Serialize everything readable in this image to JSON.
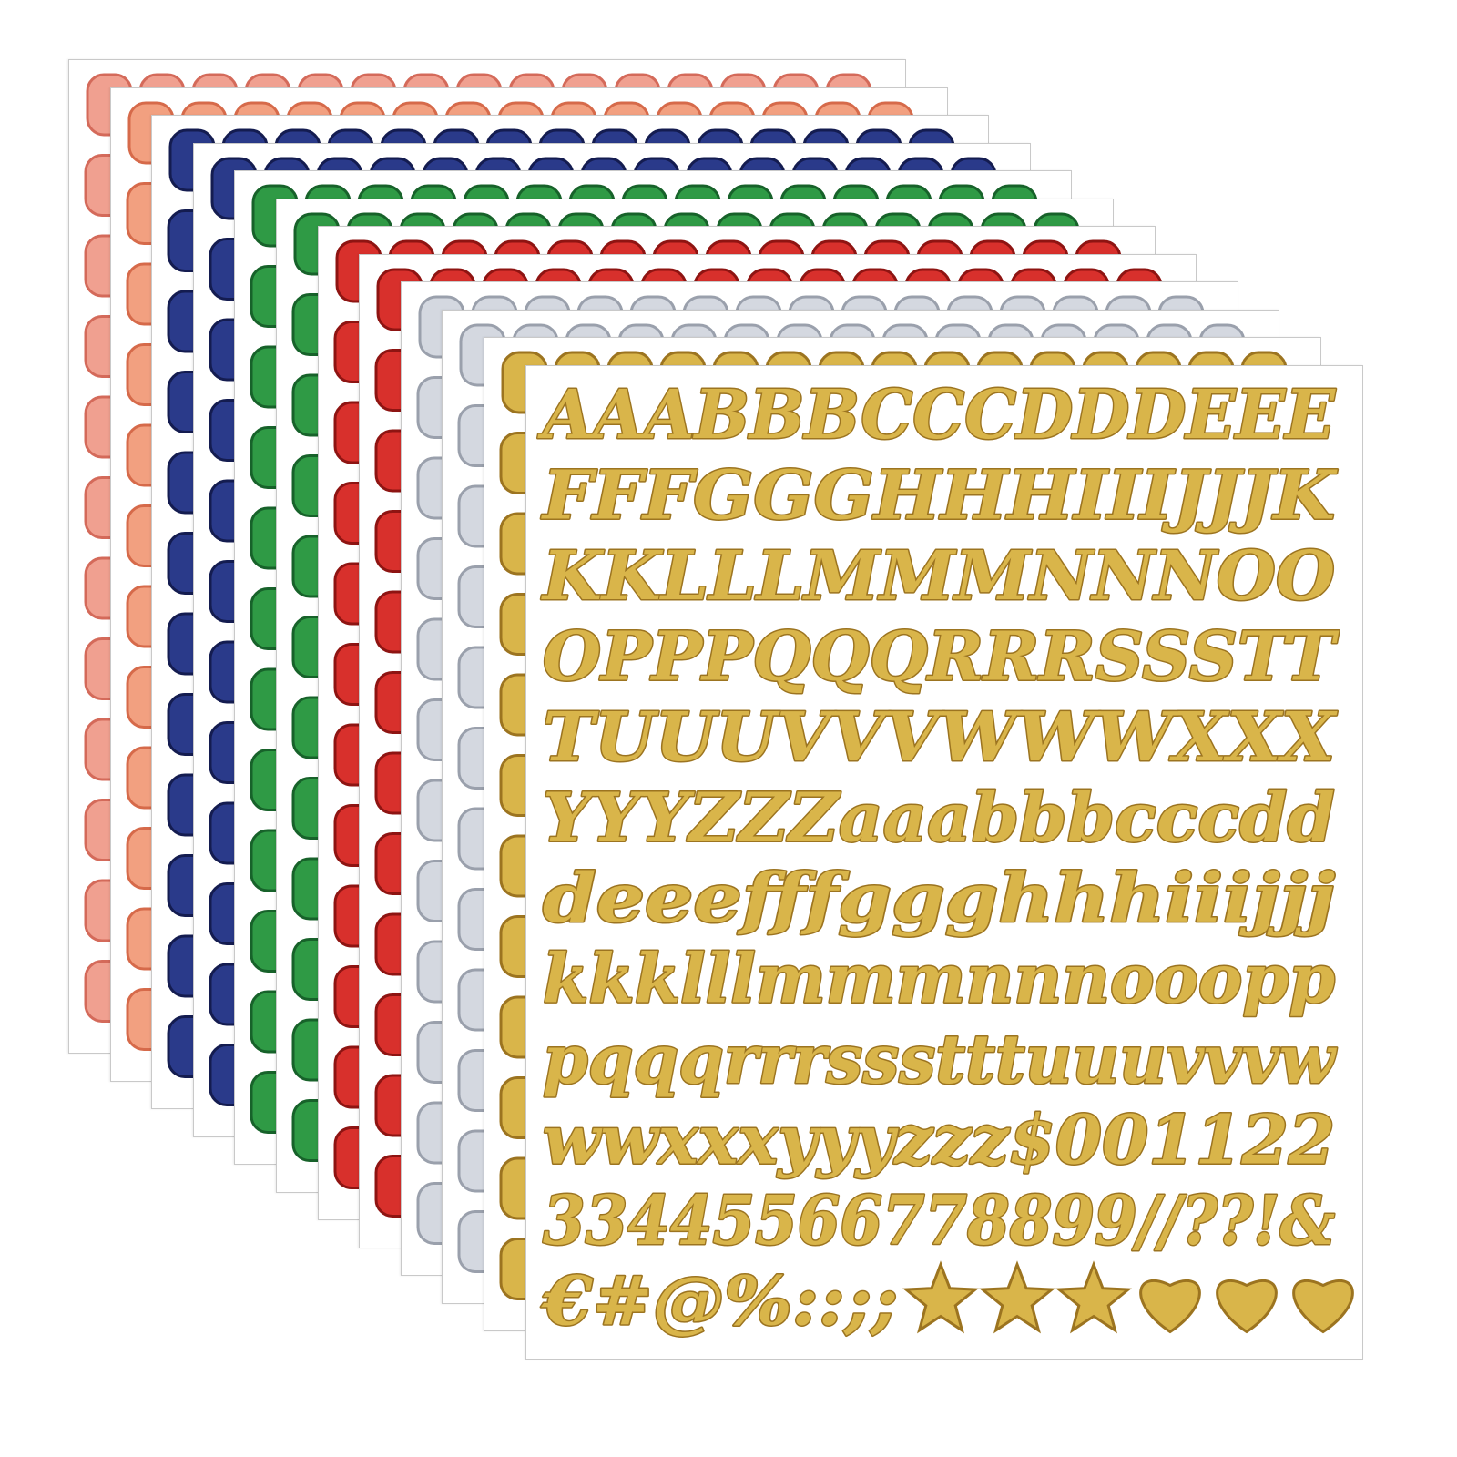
{
  "product": {
    "sheet_count": 12,
    "sheet_colors": [
      {
        "name": "pink",
        "fill": "#f0a090",
        "stroke": "#d46a5a"
      },
      {
        "name": "salmon",
        "fill": "#f2a080",
        "stroke": "#d66a4a"
      },
      {
        "name": "navy",
        "fill": "#2a3a8a",
        "stroke": "#141c50"
      },
      {
        "name": "navy",
        "fill": "#2a3a8a",
        "stroke": "#141c50"
      },
      {
        "name": "green",
        "fill": "#2f9a45",
        "stroke": "#17622a"
      },
      {
        "name": "green",
        "fill": "#2f9a45",
        "stroke": "#17622a"
      },
      {
        "name": "red",
        "fill": "#d8302c",
        "stroke": "#8e1412"
      },
      {
        "name": "red",
        "fill": "#d8302c",
        "stroke": "#8e1412"
      },
      {
        "name": "silver",
        "fill": "#d4d8e0",
        "stroke": "#9aa0ac"
      },
      {
        "name": "silver",
        "fill": "#d4d8e0",
        "stroke": "#9aa0ac"
      },
      {
        "name": "gold",
        "fill": "#d9b54a",
        "stroke": "#9c7420"
      },
      {
        "name": "gold",
        "fill": "#d9b54a",
        "stroke": "#9c7420"
      }
    ],
    "rows": [
      "AAABBBCCCDDDEEE",
      "FFFGGGHHHIIIJJJK",
      "KKLLLMMMNNNOO",
      "OPPPQQQRRRSSSTT",
      "TUUUVVVWWWXXX",
      "YYYZZZaaabbbcccdd",
      "deeefffggghhhiiijjj",
      "kkklllmmmnnnooopp",
      "pqqqrrrssstttuuuvvvw",
      "wwxxxyyyzzz$001122",
      "33445566778899//??!&",
      "€#@%::;;"
    ],
    "last_row_shapes": [
      "star",
      "star",
      "star",
      "heart",
      "heart",
      "heart"
    ]
  }
}
